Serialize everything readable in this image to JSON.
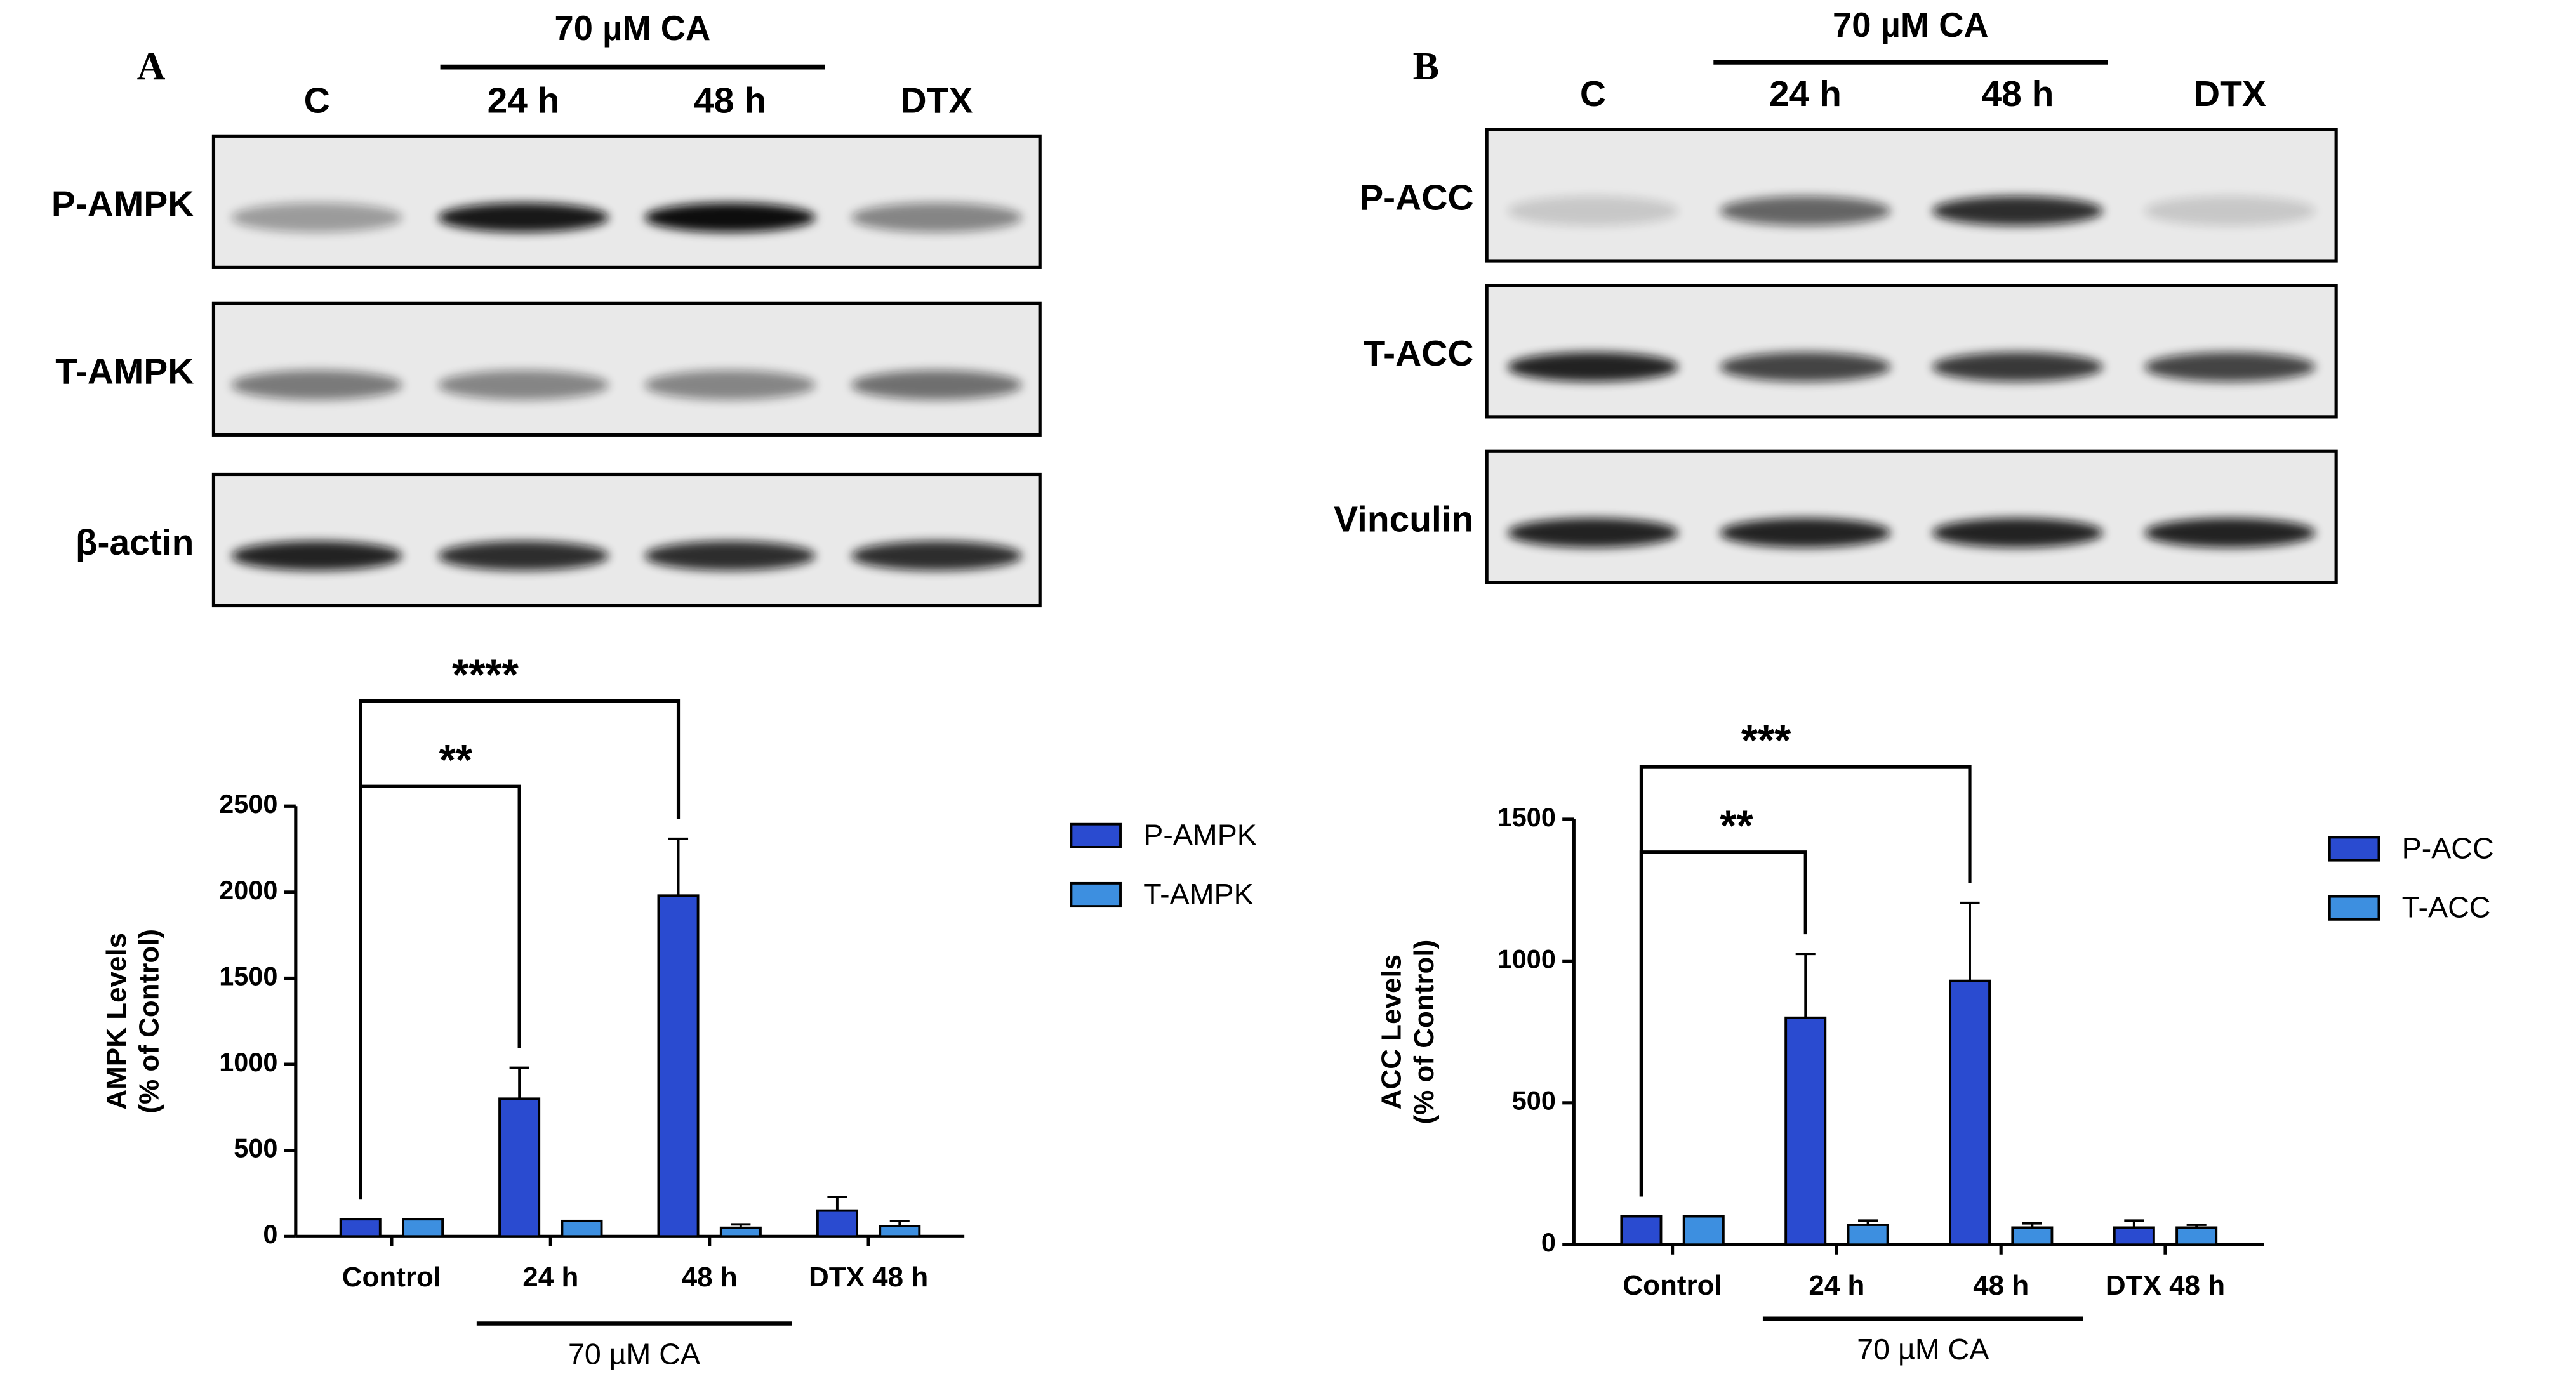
{
  "blots": [
    {
      "panel": "A",
      "group_label": "70 µM CA",
      "lanes": [
        "C",
        "24 h",
        "48 h",
        "DTX"
      ],
      "rows": [
        "P-AMPK",
        "T-AMPK",
        "β-actin"
      ]
    },
    {
      "panel": "B",
      "group_label": "70 µM CA",
      "lanes": [
        "C",
        "24 h",
        "48 h",
        "DTX"
      ],
      "rows": [
        "P-ACC",
        "T-ACC",
        "Vinculin"
      ]
    }
  ],
  "chart_data": [
    {
      "type": "bar",
      "ylabel": [
        "AMPK Levels",
        "(% of Control)"
      ],
      "categories": [
        "Control",
        "24 h",
        "48 h",
        "DTX 48 h"
      ],
      "group": {
        "label": "70 µM CA",
        "categories": [
          "24 h",
          "48 h"
        ]
      },
      "series": [
        {
          "name": "P-AMPK",
          "color": "#2a4bd0",
          "values": [
            100,
            800,
            1980,
            150
          ],
          "errors": [
            0,
            180,
            330,
            80
          ]
        },
        {
          "name": "T-AMPK",
          "color": "#3d8fe0",
          "values": [
            100,
            90,
            50,
            60
          ],
          "errors": [
            0,
            0,
            20,
            30
          ]
        }
      ],
      "annotations": [
        {
          "text": "**",
          "between": [
            "Control",
            "24 h"
          ]
        },
        {
          "text": "****",
          "between": [
            "Control",
            "48 h"
          ]
        }
      ],
      "ylim": [
        0,
        2500
      ],
      "yticks": [
        0,
        500,
        1000,
        1500,
        2000,
        2500
      ],
      "grid": false,
      "legend": "right"
    },
    {
      "type": "bar",
      "ylabel": [
        "ACC Levels",
        "(% of Control)"
      ],
      "categories": [
        "Control",
        "24 h",
        "48 h",
        "DTX 48 h"
      ],
      "group": {
        "label": "70 µM CA",
        "categories": [
          "24 h",
          "48 h"
        ]
      },
      "series": [
        {
          "name": "P-ACC",
          "color": "#2a4bd0",
          "values": [
            100,
            800,
            930,
            60
          ],
          "errors": [
            0,
            225,
            275,
            25
          ]
        },
        {
          "name": "T-ACC",
          "color": "#3d8fe0",
          "values": [
            100,
            70,
            60,
            60
          ],
          "errors": [
            0,
            15,
            15,
            10
          ]
        }
      ],
      "annotations": [
        {
          "text": "**",
          "between": [
            "Control",
            "24 h"
          ]
        },
        {
          "text": "***",
          "between": [
            "Control",
            "48 h"
          ]
        }
      ],
      "ylim": [
        0,
        1500
      ],
      "yticks": [
        0,
        500,
        1000,
        1500
      ],
      "grid": false,
      "legend": "right"
    }
  ]
}
